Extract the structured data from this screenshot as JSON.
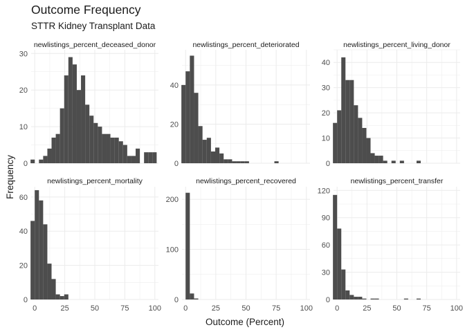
{
  "title": "Outcome Frequency",
  "subtitle": "STTR Kidney Transplant Data",
  "chart_data": {
    "type": "bar",
    "kind": "faceted histogram",
    "xlabel": "Outcome (Percent)",
    "ylabel": "Frequency",
    "x_ticks": [
      0,
      25,
      50,
      75,
      100
    ],
    "xlim": [
      -3,
      103
    ],
    "bin_width": 3.5,
    "grid": true,
    "bar_color": "#4d4d4d",
    "grid_color": "#ebebeb",
    "facets": [
      {
        "label": "newlistings_percent_deceased_donor",
        "y_ticks": [
          0,
          10,
          20,
          30
        ],
        "ylim": [
          0,
          31
        ],
        "bins": [
          {
            "x": -1.75,
            "y": 1
          },
          {
            "x": 1.75,
            "y": 0
          },
          {
            "x": 5.25,
            "y": 1
          },
          {
            "x": 8.75,
            "y": 2
          },
          {
            "x": 12.25,
            "y": 4
          },
          {
            "x": 15.75,
            "y": 7
          },
          {
            "x": 19.25,
            "y": 8
          },
          {
            "x": 22.75,
            "y": 15
          },
          {
            "x": 26.25,
            "y": 24
          },
          {
            "x": 29.75,
            "y": 29
          },
          {
            "x": 33.25,
            "y": 27
          },
          {
            "x": 36.75,
            "y": 20
          },
          {
            "x": 40.25,
            "y": 24
          },
          {
            "x": 43.75,
            "y": 16
          },
          {
            "x": 47.25,
            "y": 13
          },
          {
            "x": 50.75,
            "y": 11
          },
          {
            "x": 54.25,
            "y": 10
          },
          {
            "x": 57.75,
            "y": 8
          },
          {
            "x": 61.25,
            "y": 8
          },
          {
            "x": 64.75,
            "y": 7
          },
          {
            "x": 68.25,
            "y": 7
          },
          {
            "x": 71.75,
            "y": 6
          },
          {
            "x": 75.25,
            "y": 5
          },
          {
            "x": 78.75,
            "y": 2
          },
          {
            "x": 82.25,
            "y": 2
          },
          {
            "x": 85.75,
            "y": 4
          },
          {
            "x": 89.25,
            "y": 0
          },
          {
            "x": 92.75,
            "y": 3
          },
          {
            "x": 96.25,
            "y": 3
          },
          {
            "x": 99.75,
            "y": 3
          }
        ]
      },
      {
        "label": "newlistings_percent_deteriorated",
        "y_ticks": [
          0,
          20,
          40
        ],
        "ylim": [
          0,
          58
        ],
        "bins": [
          {
            "x": -1.75,
            "y": 40
          },
          {
            "x": 1.75,
            "y": 47
          },
          {
            "x": 5.25,
            "y": 55
          },
          {
            "x": 8.75,
            "y": 36
          },
          {
            "x": 12.25,
            "y": 19
          },
          {
            "x": 15.75,
            "y": 12
          },
          {
            "x": 19.25,
            "y": 13
          },
          {
            "x": 22.75,
            "y": 6
          },
          {
            "x": 26.25,
            "y": 8
          },
          {
            "x": 29.75,
            "y": 5
          },
          {
            "x": 33.25,
            "y": 2
          },
          {
            "x": 36.75,
            "y": 2
          },
          {
            "x": 40.25,
            "y": 1
          },
          {
            "x": 43.75,
            "y": 1
          },
          {
            "x": 47.25,
            "y": 1
          },
          {
            "x": 50.75,
            "y": 1
          },
          {
            "x": 75.25,
            "y": 1
          }
        ]
      },
      {
        "label": "newlistings_percent_living_donor",
        "y_ticks": [
          0,
          10,
          20,
          30,
          40
        ],
        "ylim": [
          0,
          45
        ],
        "bins": [
          {
            "x": -1.75,
            "y": 16
          },
          {
            "x": 1.75,
            "y": 21
          },
          {
            "x": 5.25,
            "y": 42
          },
          {
            "x": 8.75,
            "y": 33
          },
          {
            "x": 12.25,
            "y": 33
          },
          {
            "x": 15.75,
            "y": 23
          },
          {
            "x": 19.25,
            "y": 18
          },
          {
            "x": 22.75,
            "y": 14
          },
          {
            "x": 26.25,
            "y": 10
          },
          {
            "x": 29.75,
            "y": 4
          },
          {
            "x": 33.25,
            "y": 3
          },
          {
            "x": 36.75,
            "y": 3
          },
          {
            "x": 40.25,
            "y": 1
          },
          {
            "x": 43.75,
            "y": 0
          },
          {
            "x": 47.25,
            "y": 1
          },
          {
            "x": 50.75,
            "y": 0
          },
          {
            "x": 54.25,
            "y": 1
          },
          {
            "x": 57.75,
            "y": 0
          },
          {
            "x": 61.25,
            "y": 0
          },
          {
            "x": 64.75,
            "y": 0
          },
          {
            "x": 68.25,
            "y": 1
          }
        ]
      },
      {
        "label": "newlistings_percent_mortality",
        "y_ticks": [
          0,
          20,
          40,
          60
        ],
        "ylim": [
          0,
          66
        ],
        "bins": [
          {
            "x": -1.75,
            "y": 46
          },
          {
            "x": 1.75,
            "y": 64
          },
          {
            "x": 5.25,
            "y": 58
          },
          {
            "x": 8.75,
            "y": 44
          },
          {
            "x": 12.25,
            "y": 21
          },
          {
            "x": 15.75,
            "y": 12
          },
          {
            "x": 19.25,
            "y": 3
          },
          {
            "x": 22.75,
            "y": 2
          },
          {
            "x": 26.25,
            "y": 3
          }
        ]
      },
      {
        "label": "newlistings_percent_recovered",
        "y_ticks": [
          0,
          100,
          200
        ],
        "ylim": [
          0,
          225
        ],
        "bins": [
          {
            "x": -1.75,
            "y": 0
          },
          {
            "x": 1.75,
            "y": 213
          },
          {
            "x": 5.25,
            "y": 12
          },
          {
            "x": 8.75,
            "y": 2
          }
        ]
      },
      {
        "label": "newlistings_percent_transfer",
        "y_ticks": [
          0,
          30,
          60,
          90,
          120
        ],
        "ylim": [
          0,
          124
        ],
        "bins": [
          {
            "x": -1.75,
            "y": 115
          },
          {
            "x": 1.75,
            "y": 78
          },
          {
            "x": 5.25,
            "y": 33
          },
          {
            "x": 8.75,
            "y": 10
          },
          {
            "x": 12.25,
            "y": 5
          },
          {
            "x": 15.75,
            "y": 3
          },
          {
            "x": 19.25,
            "y": 3
          },
          {
            "x": 22.75,
            "y": 1
          },
          {
            "x": 26.25,
            "y": 0
          },
          {
            "x": 29.75,
            "y": 1
          },
          {
            "x": 33.25,
            "y": 1
          },
          {
            "x": 57.75,
            "y": 1
          },
          {
            "x": 68.25,
            "y": 1
          }
        ]
      }
    ]
  }
}
